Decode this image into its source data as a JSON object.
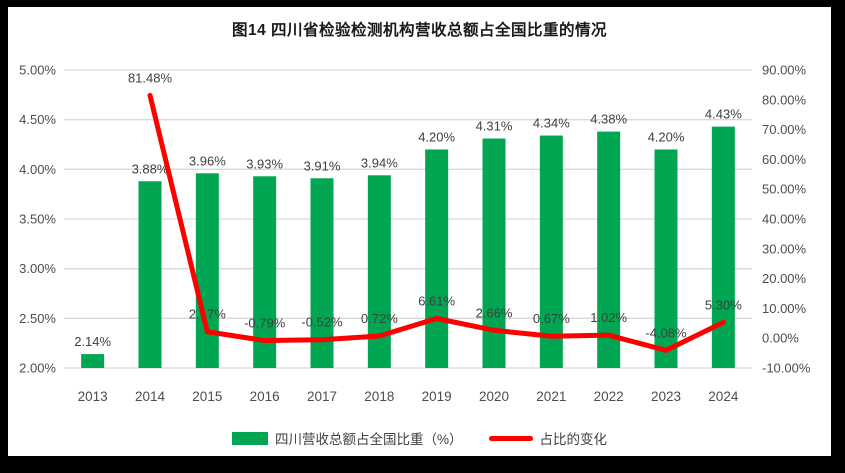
{
  "chart_data": {
    "type": "combo-bar-line",
    "title": "图14  四川省检验检测机构营收总额占全国比重的情况",
    "categories": [
      "2013",
      "2014",
      "2015",
      "2016",
      "2017",
      "2018",
      "2019",
      "2020",
      "2021",
      "2022",
      "2023",
      "2024"
    ],
    "series": [
      {
        "name": "四川营收总额占全国比重（%）",
        "type": "bar",
        "axis": "left",
        "color": "#00A651",
        "values": [
          2.14,
          3.88,
          3.96,
          3.93,
          3.91,
          3.94,
          4.2,
          4.31,
          4.34,
          4.38,
          4.2,
          4.43
        ],
        "labels": [
          "2.14%",
          "3.88%",
          "3.96%",
          "3.93%",
          "3.91%",
          "3.94%",
          "4.20%",
          "4.31%",
          "4.34%",
          "4.38%",
          "4.20%",
          "4.43%"
        ]
      },
      {
        "name": "占比的变化",
        "type": "line",
        "axis": "right",
        "color": "#FF0000",
        "values": [
          null,
          81.48,
          2.17,
          -0.79,
          -0.52,
          0.72,
          6.61,
          2.66,
          0.67,
          1.02,
          -4.08,
          5.3
        ],
        "labels": [
          null,
          "81.48%",
          "2.17%",
          "-0.79%",
          "-0.52%",
          "0.72%",
          "6.61%",
          "2.66%",
          "0.67%",
          "1.02%",
          "-4.08%",
          "5.30%"
        ]
      }
    ],
    "left_axis": {
      "min": 2.0,
      "max": 5.0,
      "tick_values": [
        5.0,
        4.5,
        4.0,
        3.5,
        3.0,
        2.5,
        2.0
      ],
      "tick_labels": [
        "5.00%",
        "4.50%",
        "4.00%",
        "3.50%",
        "3.00%",
        "2.50%",
        "2.00%"
      ]
    },
    "right_axis": {
      "min": -10,
      "max": 90,
      "tick_values": [
        90,
        80,
        70,
        60,
        50,
        40,
        30,
        20,
        10,
        0,
        -10
      ],
      "tick_labels": [
        "90.00%",
        "80.00%",
        "70.00%",
        "60.00%",
        "50.00%",
        "40.00%",
        "30.00%",
        "20.00%",
        "10.00%",
        "0.00%",
        "-10.00%"
      ]
    },
    "grid": true,
    "grid_color": "#D9D9D9",
    "legend_position": "bottom",
    "text_colors": {
      "axis": "#4d4d4d",
      "data_label": "#3f3f3f"
    }
  }
}
